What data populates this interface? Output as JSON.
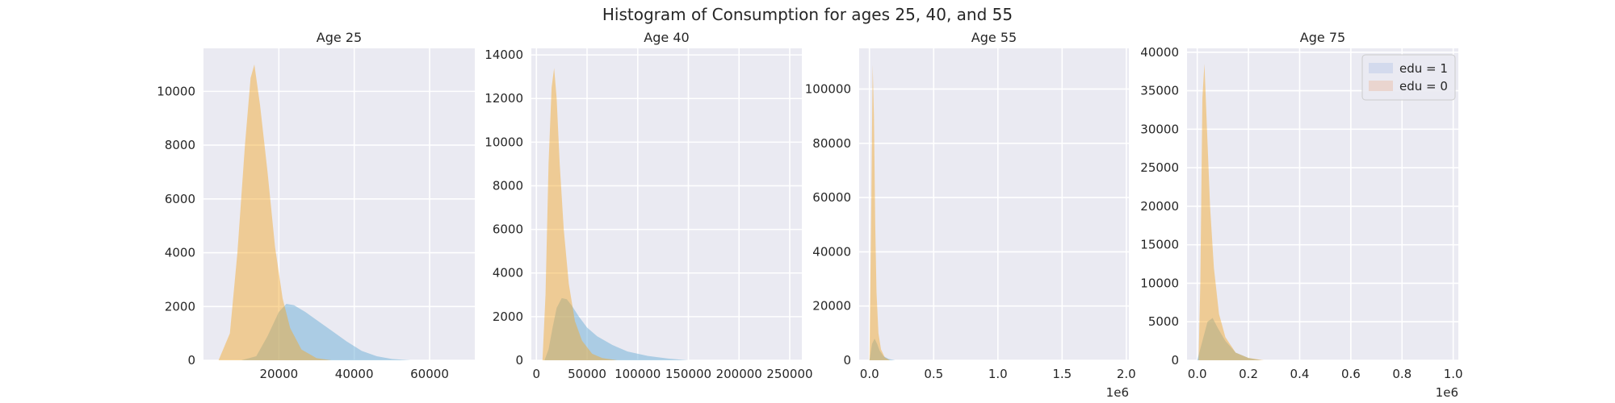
{
  "suptitle": "Histogram of Consumption for ages 25, 40, and 55",
  "colors": {
    "background": "#eaeaf2",
    "grid": "#ffffff",
    "edu1": "#6baed6",
    "edu0": "#f5a623",
    "edu1_legend": "#d3daed",
    "edu0_legend": "#ead5cf"
  },
  "chart_data": [
    {
      "type": "histogram",
      "title": "Age 25",
      "xlim": [
        0,
        72000
      ],
      "ylim": [
        0,
        11600
      ],
      "xticks": [
        20000,
        40000,
        60000
      ],
      "xtick_labels": [
        "20000",
        "40000",
        "60000"
      ],
      "yticks": [
        0,
        2000,
        4000,
        6000,
        8000,
        10000
      ],
      "ytick_labels": [
        "0",
        "2000",
        "4000",
        "6000",
        "8000",
        "10000"
      ],
      "offset_label": "",
      "series": [
        {
          "name": "edu = 1",
          "x": [
            10000,
            14000,
            17000,
            20000,
            22000,
            24000,
            27000,
            30000,
            34000,
            38000,
            42000,
            46000,
            50000,
            55000
          ],
          "y": [
            0,
            150,
            900,
            1800,
            2100,
            2050,
            1800,
            1500,
            1100,
            700,
            350,
            150,
            50,
            0
          ]
        },
        {
          "name": "edu = 0",
          "x": [
            4000,
            7000,
            9000,
            11000,
            12500,
            13500,
            15000,
            17000,
            19000,
            21000,
            23000,
            26000,
            30000,
            34000
          ],
          "y": [
            0,
            1000,
            4000,
            8000,
            10500,
            11000,
            9500,
            7000,
            4200,
            2300,
            1200,
            400,
            80,
            0
          ]
        }
      ]
    },
    {
      "type": "histogram",
      "title": "Age 40",
      "xlim": [
        -5000,
        262000
      ],
      "ylim": [
        0,
        14300
      ],
      "xticks": [
        0,
        50000,
        100000,
        150000,
        200000,
        250000
      ],
      "xtick_labels": [
        "0",
        "50000",
        "100000",
        "150000",
        "200000",
        "250000"
      ],
      "yticks": [
        0,
        2000,
        4000,
        6000,
        8000,
        10000,
        12000,
        14000
      ],
      "ytick_labels": [
        "0",
        "2000",
        "4000",
        "6000",
        "8000",
        "10000",
        "12000",
        "14000"
      ],
      "offset_label": "",
      "series": [
        {
          "name": "edu = 1",
          "x": [
            8000,
            12000,
            16000,
            20000,
            25000,
            30000,
            35000,
            42000,
            50000,
            60000,
            75000,
            90000,
            110000,
            130000,
            150000
          ],
          "y": [
            0,
            500,
            1500,
            2400,
            2850,
            2800,
            2500,
            2000,
            1500,
            1100,
            700,
            400,
            200,
            80,
            0
          ]
        },
        {
          "name": "edu = 0",
          "x": [
            6000,
            9000,
            12000,
            15000,
            17500,
            20000,
            23000,
            27000,
            32000,
            38000,
            45000,
            55000,
            65000,
            80000
          ],
          "y": [
            0,
            3000,
            9000,
            12500,
            13400,
            12000,
            9000,
            6000,
            3500,
            1800,
            900,
            300,
            100,
            0
          ]
        }
      ]
    },
    {
      "type": "histogram",
      "title": "Age 55",
      "xlim": [
        -80000,
        2020000
      ],
      "ylim": [
        0,
        115000
      ],
      "xticks": [
        0,
        500000,
        1000000,
        1500000,
        2000000
      ],
      "xtick_labels": [
        "0.0",
        "0.5",
        "1.0",
        "1.5",
        "2.0"
      ],
      "yticks": [
        0,
        20000,
        40000,
        60000,
        80000,
        100000
      ],
      "ytick_labels": [
        "0",
        "20000",
        "40000",
        "60000",
        "80000",
        "100000"
      ],
      "offset_label": "1e6",
      "series": [
        {
          "name": "edu = 1",
          "x": [
            0,
            20000,
            40000,
            60000,
            80000,
            110000,
            150000,
            200000
          ],
          "y": [
            0,
            6000,
            8000,
            6000,
            3500,
            1500,
            500,
            0
          ]
        },
        {
          "name": "edu = 0",
          "x": [
            0,
            15000,
            25000,
            35000,
            45000,
            55000,
            70000,
            90000,
            120000,
            160000
          ],
          "y": [
            0,
            60000,
            109000,
            90000,
            50000,
            25000,
            10000,
            4000,
            1000,
            0
          ]
        }
      ]
    },
    {
      "type": "histogram",
      "title": "Age 75",
      "xlim": [
        -40000,
        1020000
      ],
      "ylim": [
        0,
        40500
      ],
      "xticks": [
        0,
        200000,
        400000,
        600000,
        800000,
        1000000
      ],
      "xtick_labels": [
        "0.0",
        "0.2",
        "0.4",
        "0.6",
        "0.8",
        "1.0"
      ],
      "yticks": [
        0,
        5000,
        10000,
        15000,
        20000,
        25000,
        30000,
        35000,
        40000
      ],
      "ytick_labels": [
        "0",
        "5000",
        "10000",
        "15000",
        "20000",
        "25000",
        "30000",
        "35000",
        "40000"
      ],
      "offset_label": "1e6",
      "series": [
        {
          "name": "edu = 1",
          "x": [
            0,
            20000,
            40000,
            60000,
            80000,
            110000,
            150000,
            200000,
            250000
          ],
          "y": [
            0,
            2500,
            5000,
            5500,
            4200,
            2500,
            1000,
            300,
            0
          ]
        },
        {
          "name": "edu = 0",
          "x": [
            5000,
            12000,
            20000,
            28000,
            38000,
            50000,
            65000,
            85000,
            110000,
            150000,
            200000,
            260000
          ],
          "y": [
            0,
            10000,
            34000,
            38500,
            30000,
            20000,
            12000,
            6000,
            3000,
            1000,
            300,
            0
          ]
        }
      ]
    }
  ],
  "legend": {
    "placement": "top-right",
    "items": [
      {
        "label": "edu = 1",
        "color_key": "edu1_legend"
      },
      {
        "label": "edu = 0",
        "color_key": "edu0_legend"
      }
    ]
  }
}
